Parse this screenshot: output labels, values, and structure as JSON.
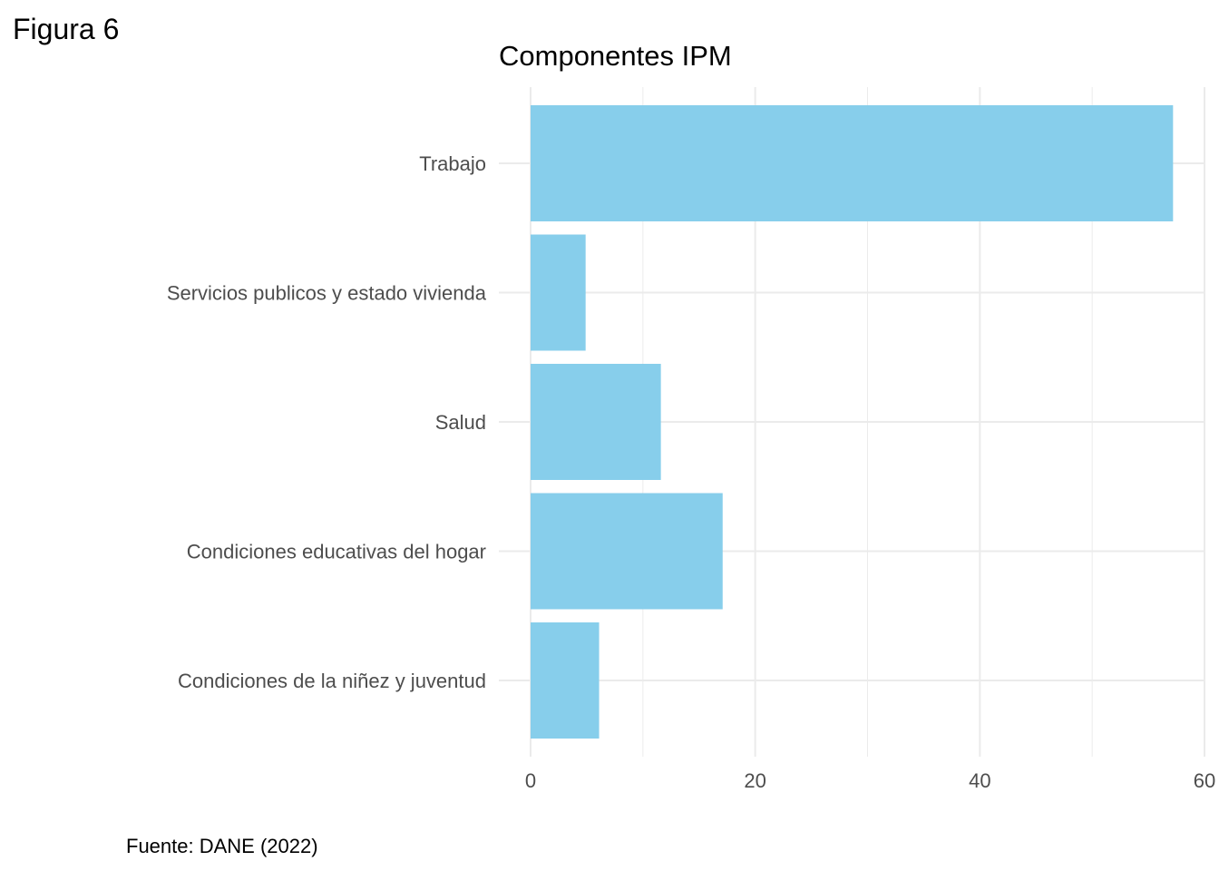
{
  "figure_label": "Figura 6",
  "source_note": "Fuente: DANE (2022)",
  "colors": {
    "bar": "#87ceeb",
    "grid": "#ebebeb",
    "tick_text": "#4d4d4d"
  },
  "chart_data": {
    "type": "bar",
    "orientation": "horizontal",
    "title": "Componentes IPM",
    "xlabel": "",
    "ylabel": "",
    "categories": [
      "Trabajo",
      "Servicios publicos y estado vivienda",
      "Salud",
      "Condiciones educativas del hogar",
      "Condiciones de la niñez y juventud"
    ],
    "values": [
      57.2,
      4.9,
      11.6,
      17.1,
      6.1
    ],
    "xlim": [
      0,
      60
    ],
    "x_ticks": [
      0,
      20,
      40,
      60
    ],
    "grid": true,
    "legend": "none"
  }
}
